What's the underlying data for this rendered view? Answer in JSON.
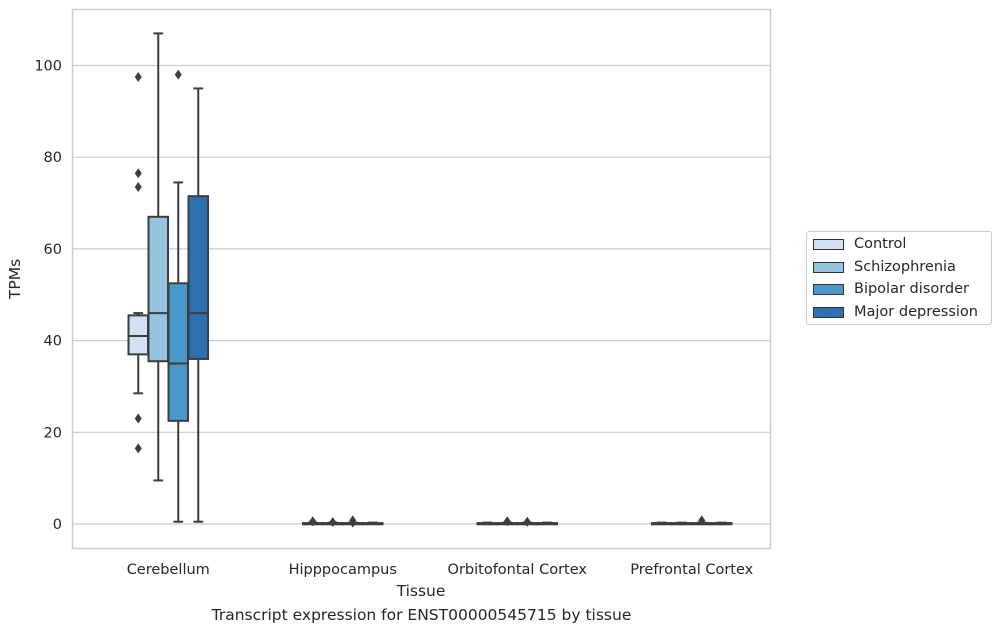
{
  "chart_data": {
    "type": "box",
    "xlabel": "Tissue",
    "ylabel": "TPMs",
    "caption": "Transcript expression for ENST00000545715 by tissue",
    "ylim": [
      -5,
      113
    ],
    "yticks": [
      0,
      20,
      40,
      60,
      80,
      100
    ],
    "grid": "horizontal",
    "legend_position": "right",
    "categories": [
      "Cerebellum",
      "Hipppocampus",
      "Orbitofontal Cortex",
      "Prefrontal Cortex"
    ],
    "series": [
      {
        "name": "Control",
        "color": "#d0e1f2",
        "boxes": [
          {
            "whislo": 28.5,
            "q1": 37,
            "med": 41,
            "q3": 45.5,
            "whishi": 46,
            "fliers": [
              97.5,
              76.5,
              73.5,
              23,
              16.5
            ]
          },
          {
            "whislo": 0,
            "q1": 0.05,
            "med": 0.1,
            "q3": 0.2,
            "whishi": 0.3,
            "fliers": [
              0.6
            ]
          },
          {
            "whislo": 0,
            "q1": 0.05,
            "med": 0.1,
            "q3": 0.2,
            "whishi": 0.3,
            "fliers": []
          },
          {
            "whislo": 0,
            "q1": 0.05,
            "med": 0.1,
            "q3": 0.2,
            "whishi": 0.3,
            "fliers": []
          }
        ]
      },
      {
        "name": "Schizophrenia",
        "color": "#94c4df",
        "boxes": [
          {
            "whislo": 9.5,
            "q1": 35.5,
            "med": 46,
            "q3": 67,
            "whishi": 107,
            "fliers": []
          },
          {
            "whislo": 0,
            "q1": 0.05,
            "med": 0.1,
            "q3": 0.2,
            "whishi": 0.3,
            "fliers": [
              0.4
            ]
          },
          {
            "whislo": 0,
            "q1": 0.05,
            "med": 0.1,
            "q3": 0.2,
            "whishi": 0.3,
            "fliers": [
              0.6
            ]
          },
          {
            "whislo": 0,
            "q1": 0.05,
            "med": 0.1,
            "q3": 0.2,
            "whishi": 0.3,
            "fliers": []
          }
        ]
      },
      {
        "name": "Bipolar disorder",
        "color": "#4a98c9",
        "boxes": [
          {
            "whislo": 0.5,
            "q1": 22.5,
            "med": 35,
            "q3": 52.5,
            "whishi": 74.5,
            "fliers": [
              98
            ]
          },
          {
            "whislo": 0,
            "q1": 0.05,
            "med": 0.1,
            "q3": 0.2,
            "whishi": 0.3,
            "fliers": [
              0.8,
              0.3
            ]
          },
          {
            "whislo": 0,
            "q1": 0.05,
            "med": 0.1,
            "q3": 0.2,
            "whishi": 0.3,
            "fliers": [
              0.5
            ]
          },
          {
            "whislo": 0,
            "q1": 0.05,
            "med": 0.1,
            "q3": 0.2,
            "whishi": 0.3,
            "fliers": [
              0.8
            ]
          }
        ]
      },
      {
        "name": "Major depression",
        "color": "#2e6fb2",
        "boxes": [
          {
            "whislo": 0.5,
            "q1": 36,
            "med": 46,
            "q3": 71.5,
            "whishi": 95,
            "fliers": []
          },
          {
            "whislo": 0,
            "q1": 0.05,
            "med": 0.1,
            "q3": 0.2,
            "whishi": 0.3,
            "fliers": []
          },
          {
            "whislo": 0,
            "q1": 0.05,
            "med": 0.1,
            "q3": 0.2,
            "whishi": 0.3,
            "fliers": []
          },
          {
            "whislo": 0,
            "q1": 0.05,
            "med": 0.1,
            "q3": 0.2,
            "whishi": 0.3,
            "fliers": []
          }
        ]
      }
    ]
  }
}
